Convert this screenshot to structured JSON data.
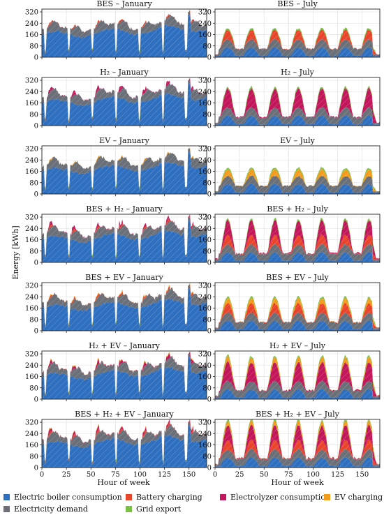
{
  "figure": {
    "ylabel": "Energy [kWh]",
    "xlabel": "Hour of week",
    "legend_placement": "bottom"
  },
  "legend": [
    {
      "key": "boiler",
      "label": "Electric boiler consumption",
      "color": "#2f6fc0"
    },
    {
      "key": "battery",
      "label": "Battery charging",
      "color": "#e8452c"
    },
    {
      "key": "electrolyzer",
      "label": "Electrolyzer consumption",
      "color": "#c2185b"
    },
    {
      "key": "ev",
      "label": "EV charging",
      "color": "#f39c1e"
    },
    {
      "key": "demand",
      "label": "Electricity demand",
      "color": "#6b6f78"
    },
    {
      "key": "export",
      "label": "Grid export",
      "color": "#7bc043"
    }
  ],
  "axes": {
    "yticks": [
      0,
      80,
      160,
      240,
      320
    ],
    "ylim": [
      0,
      340
    ],
    "xticks": [
      0,
      25,
      50,
      75,
      100,
      125,
      150
    ],
    "xlim": [
      0,
      168
    ],
    "grid": true
  },
  "chart_data": [
    {
      "type": "area",
      "title": "BES – January",
      "season": "January",
      "components": [
        "boiler",
        "battery",
        "demand",
        "export"
      ]
    },
    {
      "type": "area",
      "title": "BES – July",
      "season": "July",
      "components": [
        "boiler",
        "battery",
        "demand",
        "export"
      ]
    },
    {
      "type": "area",
      "title": "H₂ – January",
      "season": "January",
      "components": [
        "boiler",
        "electrolyzer",
        "demand",
        "export"
      ]
    },
    {
      "type": "area",
      "title": "H₂ – July",
      "season": "July",
      "components": [
        "boiler",
        "electrolyzer",
        "demand",
        "export"
      ]
    },
    {
      "type": "area",
      "title": "EV – January",
      "season": "January",
      "components": [
        "boiler",
        "ev",
        "demand",
        "export"
      ]
    },
    {
      "type": "area",
      "title": "EV – July",
      "season": "July",
      "components": [
        "boiler",
        "ev",
        "demand",
        "export"
      ]
    },
    {
      "type": "area",
      "title": "BES + H₂ – January",
      "season": "January",
      "components": [
        "boiler",
        "battery",
        "electrolyzer",
        "demand",
        "export"
      ]
    },
    {
      "type": "area",
      "title": "BES + H₂ – July",
      "season": "July",
      "components": [
        "boiler",
        "battery",
        "electrolyzer",
        "demand",
        "export"
      ]
    },
    {
      "type": "area",
      "title": "BES + EV – January",
      "season": "January",
      "components": [
        "boiler",
        "battery",
        "ev",
        "demand",
        "export"
      ]
    },
    {
      "type": "area",
      "title": "BES + EV – July",
      "season": "July",
      "components": [
        "boiler",
        "battery",
        "ev",
        "demand",
        "export"
      ]
    },
    {
      "type": "area",
      "title": "H₂ + EV – January",
      "season": "January",
      "components": [
        "boiler",
        "electrolyzer",
        "ev",
        "demand",
        "export"
      ]
    },
    {
      "type": "area",
      "title": "H₂ + EV – July",
      "season": "July",
      "components": [
        "boiler",
        "electrolyzer",
        "ev",
        "demand",
        "export"
      ]
    },
    {
      "type": "area",
      "title": "BES + H₂ + EV – January",
      "season": "January",
      "components": [
        "boiler",
        "battery",
        "electrolyzer",
        "ev",
        "demand",
        "export"
      ]
    },
    {
      "type": "area",
      "title": "BES + H₂ + EV – July",
      "season": "July",
      "components": [
        "boiler",
        "battery",
        "electrolyzer",
        "ev",
        "demand",
        "export"
      ]
    }
  ]
}
